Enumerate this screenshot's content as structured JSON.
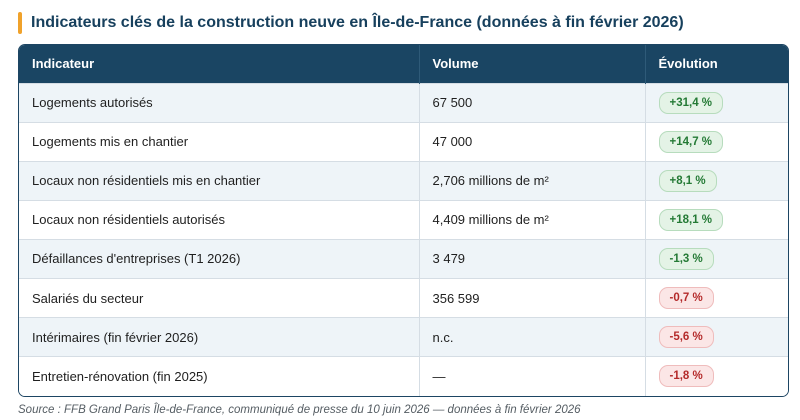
{
  "title": "Indicateurs clés de la construction neuve en Île-de-France (données à fin février 2026)",
  "colors": {
    "accent": "#f0a22b",
    "header_bg": "#1a4563",
    "title": "#17405d",
    "positive": "#247a35",
    "negative": "#b42a2a"
  },
  "table": {
    "headers": [
      "Indicateur",
      "Volume",
      "Évolution"
    ],
    "rows": [
      {
        "indicator": "Logements autorisés",
        "volume": "67 500",
        "evolution": "+31,4 %",
        "trend": "positive"
      },
      {
        "indicator": "Logements mis en chantier",
        "volume": "47 000",
        "evolution": "+14,7 %",
        "trend": "positive"
      },
      {
        "indicator": "Locaux non résidentiels mis en chantier",
        "volume": "2,706 millions de m²",
        "evolution": "+8,1 %",
        "trend": "positive"
      },
      {
        "indicator": "Locaux non résidentiels autorisés",
        "volume": "4,409 millions de m²",
        "evolution": "+18,1 %",
        "trend": "positive"
      },
      {
        "indicator": "Défaillances d'entreprises (T1 2026)",
        "volume": "3 479",
        "evolution": "-1,3 %",
        "trend": "positive"
      },
      {
        "indicator": "Salariés du secteur",
        "volume": "356 599",
        "evolution": "-0,7 %",
        "trend": "negative"
      },
      {
        "indicator": "Intérimaires (fin février 2026)",
        "volume": "n.c.",
        "evolution": "-5,6 %",
        "trend": "negative"
      },
      {
        "indicator": "Entretien-rénovation (fin 2025)",
        "volume": "—",
        "evolution": "-1,8 %",
        "trend": "negative"
      }
    ]
  },
  "source": "Source : FFB Grand Paris Île-de-France, communiqué de presse du 10 juin 2026 — données à fin février 2026"
}
